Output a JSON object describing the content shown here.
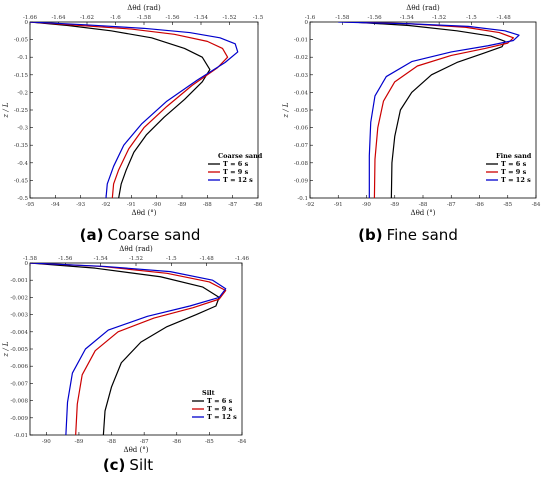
{
  "chart_data": [
    {
      "type": "line",
      "caption_letter": "(a)",
      "caption_text": "Coarse sand",
      "xlabel_bottom": "Δθd (°)",
      "xlabel_top": "Δθd (rad)",
      "ylabel": "z / L",
      "xlim_bottom": [
        -95,
        -86
      ],
      "xticks_bottom": [
        "-95",
        "-94",
        "-93",
        "-92",
        "-91",
        "-90",
        "-89",
        "-88",
        "-87",
        "-86"
      ],
      "xlim_top": [
        -1.66,
        -1.5
      ],
      "xticks_top": [
        "-1.66",
        "-1.64",
        "-1.62",
        "-1.6",
        "-1.58",
        "-1.56",
        "-1.54",
        "-1.52",
        "-1.5"
      ],
      "ylim": [
        -0.5,
        0
      ],
      "yticks": [
        "0",
        "-0.05",
        "-0.1",
        "-0.15",
        "-0.2",
        "-0.25",
        "-0.3",
        "-0.35",
        "-0.4",
        "-0.45",
        "-0.5"
      ],
      "legend_title": "Coarse sand",
      "legend_position": "bottom-right",
      "series": [
        {
          "name": "T = 6 s",
          "color": "#000000",
          "x": [
            -95.0,
            -93.5,
            -91.8,
            -90.2,
            -88.9,
            -88.2,
            -87.9,
            -88.2,
            -88.9,
            -89.7,
            -90.4,
            -90.9,
            -91.2,
            -91.4,
            -91.5
          ],
          "y": [
            0,
            -0.01,
            -0.025,
            -0.045,
            -0.075,
            -0.1,
            -0.135,
            -0.17,
            -0.22,
            -0.27,
            -0.32,
            -0.37,
            -0.42,
            -0.46,
            -0.5
          ]
        },
        {
          "name": "T = 9 s",
          "color": "#cc0000",
          "x": [
            -95.0,
            -93.0,
            -91.0,
            -89.3,
            -88.0,
            -87.4,
            -87.2,
            -87.6,
            -88.6,
            -89.6,
            -90.5,
            -91.1,
            -91.5,
            -91.7,
            -91.75
          ],
          "y": [
            0,
            -0.01,
            -0.02,
            -0.035,
            -0.055,
            -0.075,
            -0.1,
            -0.13,
            -0.18,
            -0.24,
            -0.3,
            -0.36,
            -0.42,
            -0.46,
            -0.5
          ]
        },
        {
          "name": "T = 12 s",
          "color": "#0000cc",
          "x": [
            -95.0,
            -92.8,
            -90.5,
            -88.7,
            -87.5,
            -86.9,
            -86.8,
            -87.3,
            -88.4,
            -89.6,
            -90.6,
            -91.3,
            -91.7,
            -91.95,
            -92.0
          ],
          "y": [
            0,
            -0.008,
            -0.018,
            -0.03,
            -0.045,
            -0.062,
            -0.085,
            -0.115,
            -0.165,
            -0.225,
            -0.29,
            -0.35,
            -0.41,
            -0.46,
            -0.5
          ]
        }
      ]
    },
    {
      "type": "line",
      "caption_letter": "(b)",
      "caption_text": "Fine sand",
      "xlabel_bottom": "Δθd (°)",
      "xlabel_top": "Δθd (rad)",
      "ylabel": "z / L",
      "xlim_bottom": [
        -92,
        -84
      ],
      "xticks_bottom": [
        "-92",
        "-91",
        "-90",
        "-89",
        "-88",
        "-87",
        "-86",
        "-85",
        "-84"
      ],
      "xlim_top": [
        -1.6,
        -1.46
      ],
      "xticks_top": [
        "-1.6",
        "-1.58",
        "-1.56",
        "-1.54",
        "-1.52",
        "-1.5",
        "-1.48"
      ],
      "ylim": [
        -0.1,
        0
      ],
      "yticks": [
        "0",
        "-0.01",
        "-0.02",
        "-0.03",
        "-0.04",
        "-0.05",
        "-0.06",
        "-0.07",
        "-0.08",
        "-0.09",
        "-0.1"
      ],
      "legend_title": "Fine sand",
      "legend_position": "bottom-right",
      "series": [
        {
          "name": "T = 6 s",
          "color": "#000000",
          "x": [
            -90.5,
            -88.5,
            -86.8,
            -85.6,
            -85.1,
            -85.2,
            -85.9,
            -86.8,
            -87.7,
            -88.4,
            -88.8,
            -89.0,
            -89.1,
            -89.12
          ],
          "y": [
            0,
            -0.002,
            -0.005,
            -0.008,
            -0.011,
            -0.014,
            -0.018,
            -0.023,
            -0.03,
            -0.04,
            -0.05,
            -0.065,
            -0.08,
            -0.1
          ]
        },
        {
          "name": "T = 9 s",
          "color": "#cc0000",
          "x": [
            -90.8,
            -88.5,
            -86.5,
            -85.3,
            -84.8,
            -85.0,
            -85.8,
            -87.0,
            -88.2,
            -89.0,
            -89.4,
            -89.6,
            -89.7,
            -89.72
          ],
          "y": [
            0,
            -0.001,
            -0.003,
            -0.006,
            -0.009,
            -0.012,
            -0.015,
            -0.019,
            -0.025,
            -0.034,
            -0.045,
            -0.06,
            -0.078,
            -0.1
          ]
        },
        {
          "name": "T = 12 s",
          "color": "#0000cc",
          "x": [
            -91.0,
            -88.5,
            -86.4,
            -85.1,
            -84.6,
            -84.8,
            -85.7,
            -87.0,
            -88.4,
            -89.3,
            -89.7,
            -89.85,
            -89.9,
            -89.9
          ],
          "y": [
            0,
            -0.001,
            -0.0025,
            -0.005,
            -0.0075,
            -0.0105,
            -0.0135,
            -0.017,
            -0.0225,
            -0.031,
            -0.042,
            -0.057,
            -0.076,
            -0.1
          ]
        }
      ]
    },
    {
      "type": "line",
      "caption_letter": "(c)",
      "caption_text": "Silt",
      "xlabel_bottom": "Δθd (°)",
      "xlabel_top": "Δθd (rad)",
      "ylabel": "z / L",
      "xlim_bottom": [
        -90.5,
        -84
      ],
      "xticks_bottom": [
        "-90",
        "-89",
        "-88",
        "-87",
        "-86",
        "-85",
        "-84"
      ],
      "xlim_top": [
        -1.58,
        -1.46
      ],
      "xticks_top": [
        "-1.58",
        "-1.56",
        "-1.54",
        "-1.52",
        "-1.5",
        "-1.48",
        "-1.46"
      ],
      "ylim": [
        -0.01,
        0
      ],
      "yticks": [
        "0",
        "-0.001",
        "-0.002",
        "-0.003",
        "-0.004",
        "-0.005",
        "-0.006",
        "-0.007",
        "-0.008",
        "-0.009",
        "-0.01"
      ],
      "legend_title": "Silt",
      "legend_position": "bottom-right",
      "series": [
        {
          "name": "T = 6 s",
          "color": "#000000",
          "x": [
            -90.5,
            -88.5,
            -86.5,
            -85.2,
            -84.7,
            -84.8,
            -85.4,
            -86.3,
            -87.1,
            -87.7,
            -88.0,
            -88.2,
            -88.25
          ],
          "y": [
            0,
            -0.0003,
            -0.0008,
            -0.0014,
            -0.002,
            -0.0025,
            -0.003,
            -0.0037,
            -0.0046,
            -0.0058,
            -0.0072,
            -0.0086,
            -0.01
          ]
        },
        {
          "name": "T = 9 s",
          "color": "#cc0000",
          "x": [
            -90.5,
            -88.3,
            -86.3,
            -85.0,
            -84.5,
            -84.7,
            -85.5,
            -86.7,
            -87.8,
            -88.5,
            -88.9,
            -89.05,
            -89.1
          ],
          "y": [
            0,
            -0.0002,
            -0.0006,
            -0.0011,
            -0.0016,
            -0.0021,
            -0.0026,
            -0.0032,
            -0.004,
            -0.0051,
            -0.0065,
            -0.0082,
            -0.01
          ]
        },
        {
          "name": "T = 12 s",
          "color": "#0000cc",
          "x": [
            -90.5,
            -88.2,
            -86.2,
            -84.9,
            -84.5,
            -84.7,
            -85.6,
            -86.9,
            -88.1,
            -88.8,
            -89.2,
            -89.35,
            -89.4
          ],
          "y": [
            0,
            -0.0002,
            -0.0005,
            -0.001,
            -0.0015,
            -0.002,
            -0.0025,
            -0.0031,
            -0.0039,
            -0.005,
            -0.0064,
            -0.0081,
            -0.01
          ]
        }
      ]
    }
  ]
}
